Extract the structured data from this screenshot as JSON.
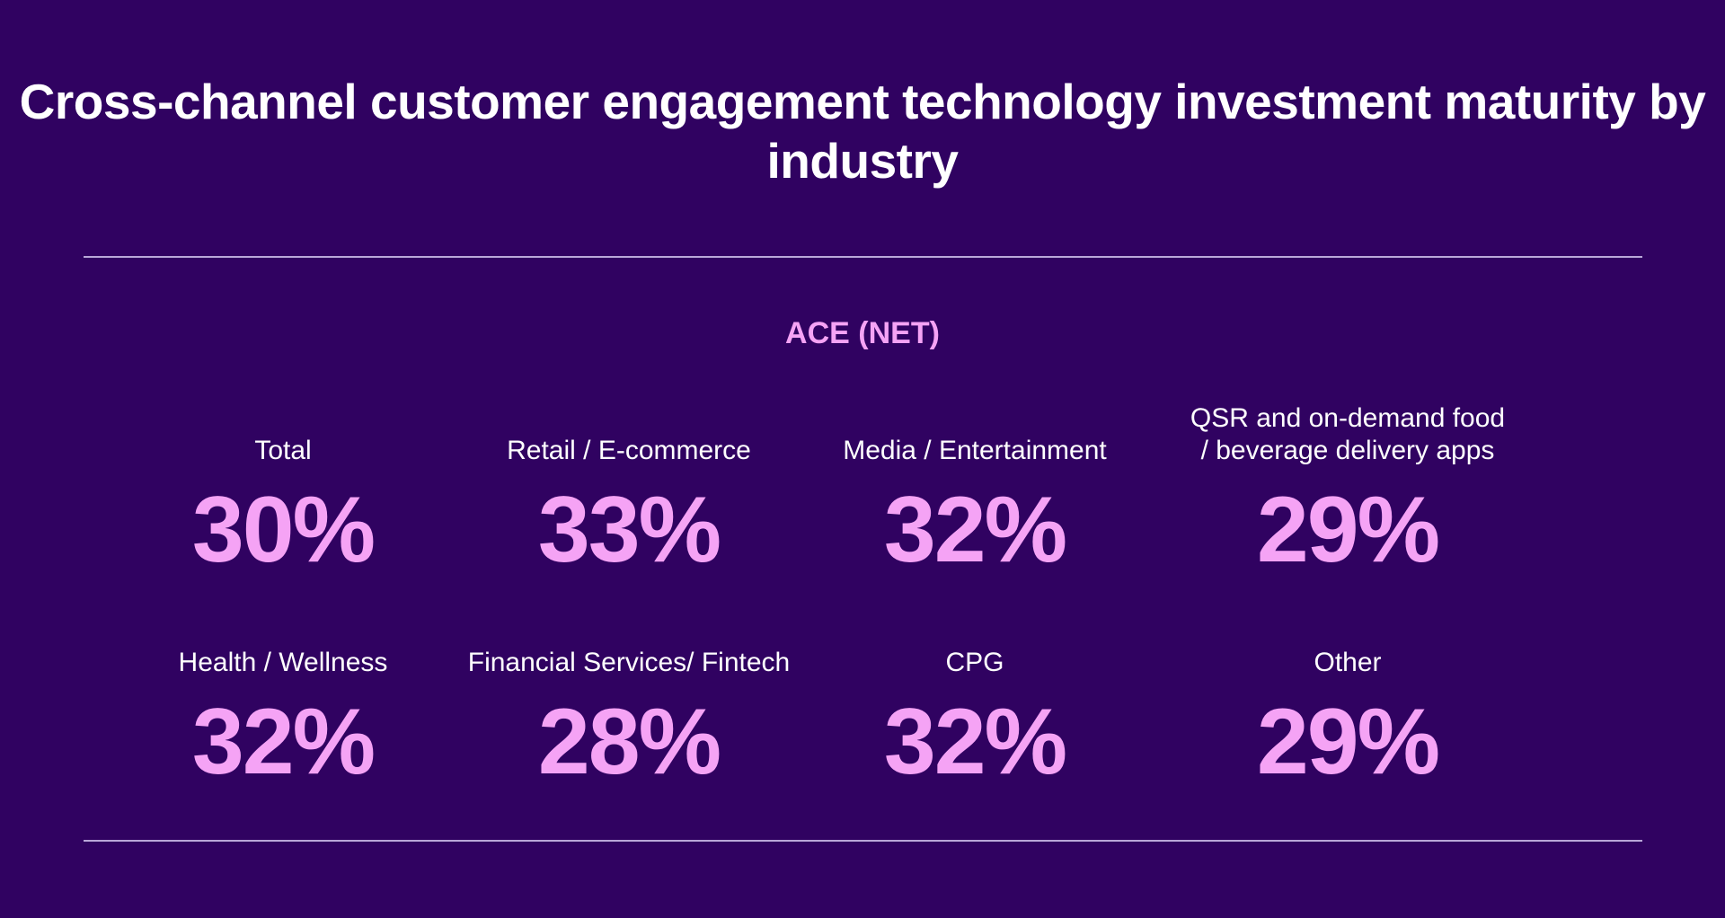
{
  "chart_data": {
    "type": "table",
    "title": "Cross-channel customer engagement technology investment maturity by industry",
    "subtitle": "ACE (NET)",
    "unit": "%",
    "categories": [
      "Total",
      "Retail / E-commerce",
      "Media / Entertainment",
      "QSR and on-demand food\n/ beverage delivery apps",
      "Health / Wellness",
      "Financial Services/ Fintech",
      "CPG",
      "Other"
    ],
    "values": [
      30,
      33,
      32,
      29,
      32,
      28,
      32,
      29
    ],
    "value_labels": [
      "30%",
      "33%",
      "32%",
      "29%",
      "32%",
      "28%",
      "32%",
      "29%"
    ]
  },
  "colors": {
    "background": "#300261",
    "accent": "#f5a3f5",
    "text": "#ffffff",
    "rule": "#b9a7d9"
  }
}
